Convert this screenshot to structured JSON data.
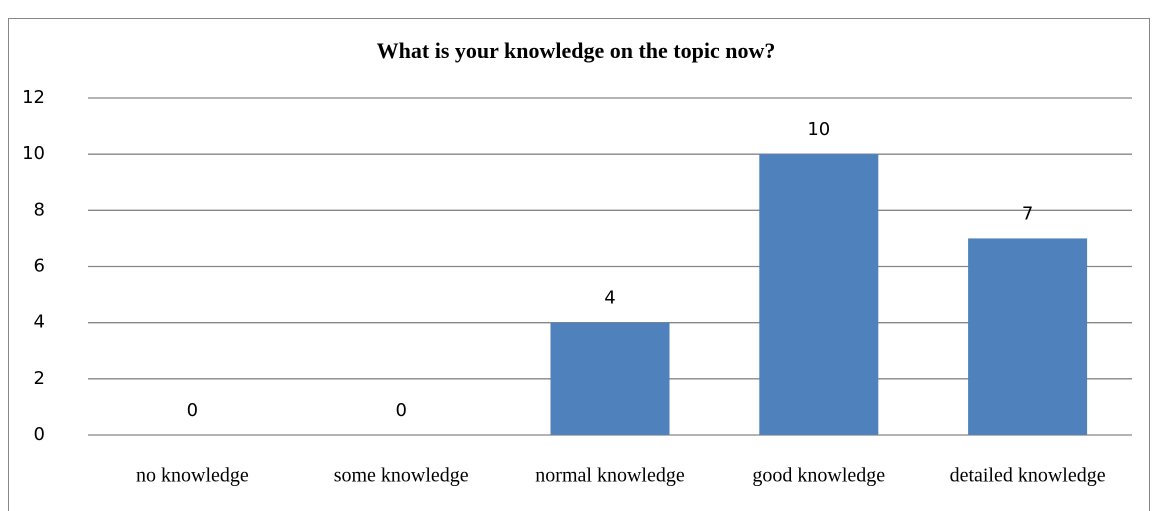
{
  "chart_data": {
    "type": "bar",
    "title": "What is your knowledge on the topic now?",
    "categories": [
      "no knowledge",
      "some knowledge",
      "normal knowledge",
      "good knowledge",
      "detailed knowledge"
    ],
    "values": [
      0,
      0,
      4,
      10,
      7
    ],
    "color": "#4f81bd",
    "ylim": [
      0,
      12
    ],
    "yticks": [
      0,
      2,
      4,
      6,
      8,
      10,
      12
    ],
    "grid": true
  }
}
